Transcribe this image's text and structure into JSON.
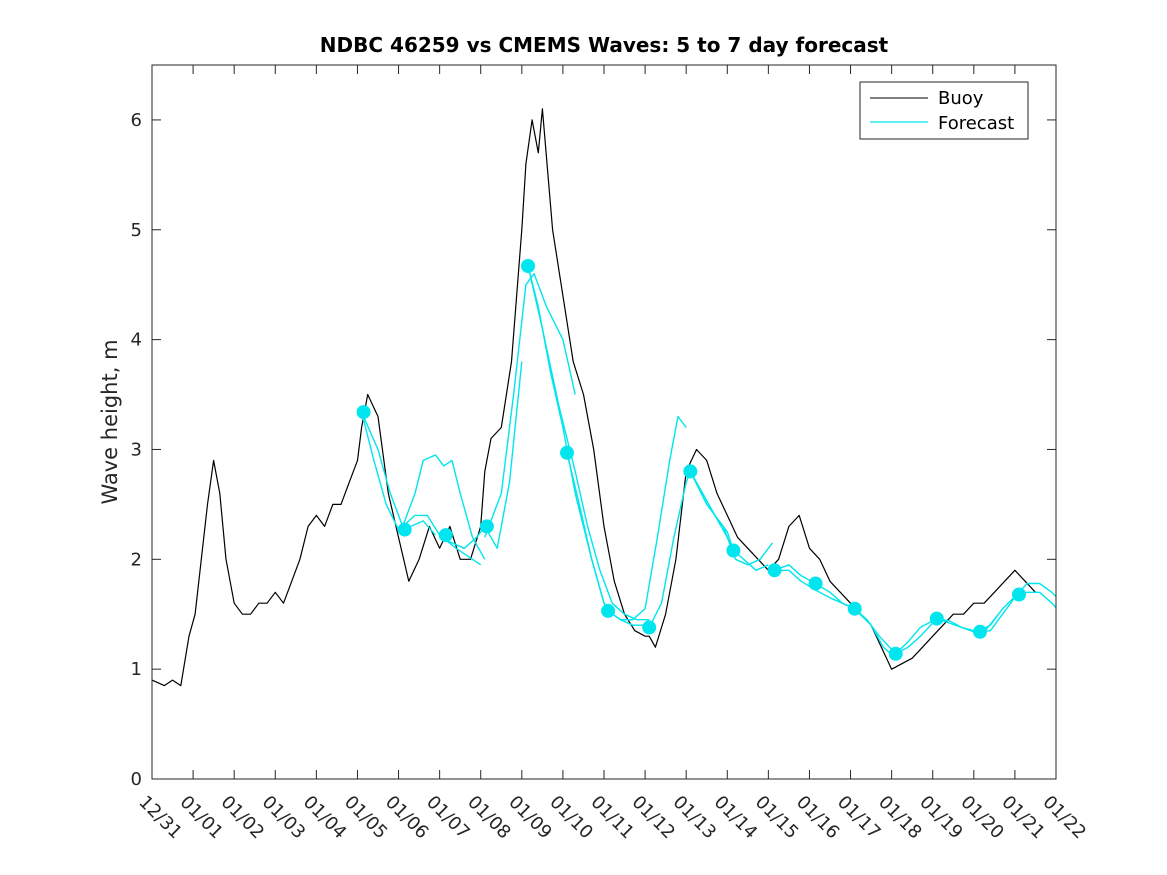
{
  "chart_data": {
    "type": "line",
    "title": "NDBC 46259 vs CMEMS Waves: 5 to 7 day forecast",
    "xlabel": "",
    "ylabel": "Wave height, m",
    "xlim": [
      0,
      22
    ],
    "ylim": [
      0,
      6.5
    ],
    "x_tick_labels": [
      "12/31",
      "01/01",
      "01/02",
      "01/03",
      "01/04",
      "01/05",
      "01/06",
      "01/07",
      "01/08",
      "01/09",
      "01/10",
      "01/11",
      "01/12",
      "01/13",
      "01/14",
      "01/15",
      "01/16",
      "01/17",
      "01/18",
      "01/19",
      "01/20",
      "01/21",
      "01/22"
    ],
    "y_ticks": [
      0,
      1,
      2,
      3,
      4,
      5,
      6
    ],
    "legend": {
      "position": "top-right",
      "entries": [
        {
          "label": "Buoy",
          "color": "#000000"
        },
        {
          "label": "Forecast",
          "color": "#00e5ee"
        }
      ]
    },
    "series": [
      {
        "name": "Buoy",
        "color": "#000000",
        "x": [
          0,
          0.3,
          0.5,
          0.7,
          0.9,
          1.05,
          1.2,
          1.35,
          1.5,
          1.65,
          1.8,
          2.0,
          2.2,
          2.4,
          2.6,
          2.8,
          3.0,
          3.2,
          3.4,
          3.6,
          3.8,
          4.0,
          4.2,
          4.4,
          4.6,
          4.8,
          5.0,
          5.1,
          5.25,
          5.5,
          5.75,
          6.0,
          6.25,
          6.5,
          6.75,
          7.0,
          7.25,
          7.5,
          7.75,
          8.0,
          8.1,
          8.25,
          8.5,
          8.75,
          9.0,
          9.1,
          9.25,
          9.4,
          9.5,
          9.75,
          10.0,
          10.25,
          10.5,
          10.75,
          11.0,
          11.25,
          11.5,
          11.75,
          12.0,
          12.1,
          12.25,
          12.5,
          12.75,
          13.0,
          13.25,
          13.5,
          13.75,
          14.0,
          14.25,
          14.5,
          14.75,
          15.0,
          15.25,
          15.5,
          15.75,
          16.0,
          16.25,
          16.5,
          16.75,
          17.0,
          17.25,
          17.5,
          17.75,
          18.0,
          18.25,
          18.5,
          18.75,
          19.0,
          19.25,
          19.5,
          19.75,
          20.0,
          20.25,
          20.5,
          20.75,
          21.0,
          21.25,
          21.5
        ],
        "y": [
          0.9,
          0.85,
          0.9,
          0.85,
          1.3,
          1.5,
          2.0,
          2.5,
          2.9,
          2.6,
          2.0,
          1.6,
          1.5,
          1.5,
          1.6,
          1.6,
          1.7,
          1.6,
          1.8,
          2.0,
          2.3,
          2.4,
          2.3,
          2.5,
          2.5,
          2.7,
          2.9,
          3.2,
          3.5,
          3.3,
          2.6,
          2.2,
          1.8,
          2.0,
          2.3,
          2.1,
          2.3,
          2.0,
          2.0,
          2.3,
          2.8,
          3.1,
          3.2,
          3.8,
          5.0,
          5.6,
          6.0,
          5.7,
          6.1,
          5.0,
          4.4,
          3.8,
          3.5,
          3.0,
          2.3,
          1.8,
          1.5,
          1.35,
          1.3,
          1.3,
          1.2,
          1.5,
          2.0,
          2.8,
          3.0,
          2.9,
          2.6,
          2.4,
          2.2,
          2.1,
          2.0,
          1.9,
          2.0,
          2.3,
          2.4,
          2.1,
          2.0,
          1.8,
          1.7,
          1.6,
          1.5,
          1.4,
          1.2,
          1.0,
          1.05,
          1.1,
          1.2,
          1.3,
          1.4,
          1.5,
          1.5,
          1.6,
          1.6,
          1.7,
          1.8,
          1.9,
          1.8,
          1.7
        ]
      },
      {
        "name": "Forecast",
        "color": "#00e5ee",
        "segments": [
          {
            "x": [
              5.1,
              5.4,
              5.7,
              6.0,
              6.3,
              6.6,
              6.9
            ],
            "y": [
              3.34,
              2.9,
              2.5,
              2.27,
              2.3,
              2.35,
              2.22
            ]
          },
          {
            "x": [
              5.1,
              5.5,
              5.8,
              6.1,
              6.4,
              6.7,
              7.0,
              7.4,
              7.8,
              8.0
            ],
            "y": [
              3.34,
              3.0,
              2.6,
              2.3,
              2.4,
              2.4,
              2.22,
              2.1,
              2.0,
              1.95
            ]
          },
          {
            "x": [
              6.1,
              6.4,
              6.6,
              6.9,
              7.1,
              7.3,
              7.5,
              7.8,
              8.1
            ],
            "y": [
              2.3,
              2.6,
              2.9,
              2.95,
              2.85,
              2.9,
              2.6,
              2.2,
              2.0
            ]
          },
          {
            "x": [
              7.0,
              7.3,
              7.6,
              7.9,
              8.1
            ],
            "y": [
              2.2,
              2.15,
              2.1,
              2.2,
              2.3
            ]
          },
          {
            "x": [
              8.1,
              8.4,
              8.7,
              9.0
            ],
            "y": [
              2.3,
              2.1,
              2.7,
              3.8
            ]
          },
          {
            "x": [
              8.1,
              8.5,
              8.8,
              9.1,
              9.3,
              9.6,
              10.0,
              10.3
            ],
            "y": [
              2.2,
              2.6,
              3.5,
              4.5,
              4.6,
              4.3,
              4.0,
              3.5
            ]
          },
          {
            "x": [
              9.15,
              9.4,
              9.7,
              10.0,
              10.3,
              10.7,
              11.0,
              11.1
            ],
            "y": [
              4.67,
              4.3,
              3.7,
              3.2,
              2.6,
              2.0,
              1.6,
              1.53
            ]
          },
          {
            "x": [
              9.15,
              9.5,
              9.9,
              10.3,
              10.6,
              10.9,
              11.2,
              11.5,
              11.8,
              12.1
            ],
            "y": [
              4.67,
              4.1,
              3.4,
              2.8,
              2.3,
              1.9,
              1.6,
              1.5,
              1.45,
              1.45
            ]
          },
          {
            "x": [
              10.1,
              10.4,
              10.7,
              11.0,
              11.1,
              11.4,
              11.7,
              12.0,
              12.1
            ],
            "y": [
              2.97,
              2.5,
              2.0,
              1.6,
              1.53,
              1.45,
              1.4,
              1.4,
              1.38
            ]
          },
          {
            "x": [
              11.1,
              11.4,
              11.7,
              12.0,
              12.3,
              12.6,
              12.8,
              13.0
            ],
            "y": [
              1.53,
              1.45,
              1.45,
              1.55,
              2.2,
              2.9,
              3.3,
              3.2
            ]
          },
          {
            "x": [
              12.1,
              12.4,
              12.7,
              13.0,
              13.1,
              13.4,
              13.7,
              14.0,
              14.15
            ],
            "y": [
              1.38,
              1.6,
              2.2,
              2.7,
              2.8,
              2.6,
              2.4,
              2.2,
              2.08
            ]
          },
          {
            "x": [
              13.1,
              13.4,
              13.7,
              14.0,
              14.15,
              14.4,
              14.7,
              15.0
            ],
            "y": [
              2.8,
              2.6,
              2.4,
              2.25,
              2.08,
              2.0,
              1.9,
              1.95
            ]
          },
          {
            "x": [
              13.1,
              13.5,
              13.9,
              14.2,
              14.5,
              14.8,
              15.1
            ],
            "y": [
              2.8,
              2.5,
              2.3,
              2.0,
              1.95,
              2.0,
              2.15
            ]
          },
          {
            "x": [
              15.15,
              15.5,
              15.8,
              16.15,
              16.5,
              16.8,
              17.1
            ],
            "y": [
              1.9,
              1.95,
              1.85,
              1.78,
              1.7,
              1.6,
              1.55
            ]
          },
          {
            "x": [
              15.15,
              15.5,
              15.8,
              16.15,
              16.5,
              16.8,
              17.1,
              17.5,
              17.8,
              18.1
            ],
            "y": [
              1.9,
              1.9,
              1.8,
              1.72,
              1.65,
              1.6,
              1.55,
              1.4,
              1.2,
              1.1
            ]
          },
          {
            "x": [
              17.1,
              17.4,
              17.7,
              18.1,
              18.4,
              18.7,
              19.1,
              19.4,
              19.7,
              20.1
            ],
            "y": [
              1.55,
              1.45,
              1.3,
              1.14,
              1.2,
              1.3,
              1.46,
              1.42,
              1.38,
              1.34
            ]
          },
          {
            "x": [
              18.1,
              18.4,
              18.7,
              19.1,
              19.4,
              19.7,
              20.0,
              20.3,
              20.6
            ],
            "y": [
              1.14,
              1.25,
              1.38,
              1.46,
              1.44,
              1.38,
              1.34,
              1.36,
              1.5
            ]
          },
          {
            "x": [
              20.1,
              20.4,
              20.7,
              21.05,
              21.3,
              21.6,
              21.9,
              22.0
            ],
            "y": [
              1.34,
              1.35,
              1.5,
              1.68,
              1.78,
              1.78,
              1.7,
              1.66
            ]
          },
          {
            "x": [
              20.1,
              20.4,
              20.7,
              21.05,
              21.3,
              21.6,
              21.9,
              22.0
            ],
            "y": [
              1.34,
              1.4,
              1.55,
              1.68,
              1.7,
              1.7,
              1.6,
              1.56
            ]
          }
        ],
        "markers": {
          "x": [
            5.15,
            6.15,
            7.15,
            8.15,
            9.15,
            10.1,
            11.1,
            12.1,
            13.1,
            14.15,
            15.15,
            16.15,
            17.1,
            18.1,
            19.1,
            20.15,
            21.1
          ],
          "y": [
            3.34,
            2.27,
            2.22,
            2.3,
            4.67,
            2.97,
            1.53,
            1.38,
            2.8,
            2.08,
            1.9,
            1.78,
            1.55,
            1.14,
            1.46,
            1.34,
            1.68
          ]
        }
      }
    ]
  }
}
